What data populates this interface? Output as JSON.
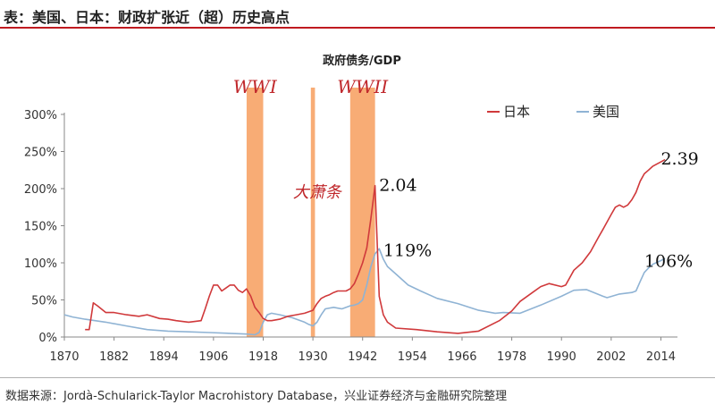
{
  "header": {
    "title": "表：美国、日本：财政扩张近（超）历史高点"
  },
  "footer": {
    "source": "数据来源：Jordà-Schularick-Taylor Macrohistory Database，兴业证券经济与金融研究院整理"
  },
  "colors": {
    "japan": "#d0393b",
    "usa": "#8fb3d4",
    "bands": "#f7a366",
    "accent_rule": "#c01a20",
    "annotation_red": "#c0282c"
  },
  "chart_data": {
    "type": "line",
    "title": "政府债务/GDP",
    "xlabel": "",
    "ylabel": "",
    "xlim": [
      1870,
      2018
    ],
    "ylim": [
      0,
      300
    ],
    "x_ticks": [
      "1870",
      "1882",
      "1894",
      "1906",
      "1918",
      "1930",
      "1942",
      "1954",
      "1966",
      "1978",
      "1990",
      "2002",
      "2014"
    ],
    "y_ticks": [
      "0%",
      "50%",
      "100%",
      "150%",
      "200%",
      "250%",
      "300%"
    ],
    "legend": {
      "placement": "top-right",
      "entries": [
        "日本",
        "美国"
      ]
    },
    "bands": [
      {
        "label": "WWI",
        "start": 1914,
        "end": 1918
      },
      {
        "label": "",
        "start": 1929.5,
        "end": 1930.5
      },
      {
        "label": "WWII",
        "start": 1939,
        "end": 1945
      }
    ],
    "annotations": [
      {
        "text": "大萧条",
        "x": 1931,
        "y": 195,
        "color": "red",
        "italic": true
      },
      {
        "text": "2.04",
        "x": 1946,
        "y": 204,
        "color": "black"
      },
      {
        "text": "119%",
        "x": 1947,
        "y": 116,
        "color": "black"
      },
      {
        "text": "2.39",
        "x": 2014,
        "y": 240,
        "color": "black"
      },
      {
        "text": "106%",
        "x": 2010,
        "y": 102,
        "color": "black"
      }
    ],
    "series": [
      {
        "name": "日本",
        "x": [
          1875,
          1876,
          1877,
          1878,
          1880,
          1882,
          1885,
          1888,
          1890,
          1893,
          1895,
          1897,
          1900,
          1903,
          1904,
          1905,
          1906,
          1907,
          1908,
          1909,
          1910,
          1911,
          1912,
          1913,
          1914,
          1915,
          1916,
          1917,
          1918,
          1919,
          1920,
          1922,
          1924,
          1926,
          1928,
          1930,
          1931,
          1932,
          1933,
          1934,
          1935,
          1936,
          1937,
          1938,
          1939,
          1940,
          1941,
          1942,
          1943,
          1944,
          1945,
          1946,
          1947,
          1948,
          1950,
          1955,
          1960,
          1965,
          1970,
          1975,
          1978,
          1980,
          1983,
          1985,
          1987,
          1990,
          1991,
          1992,
          1993,
          1995,
          1997,
          1999,
          2000,
          2002,
          2003,
          2004,
          2005,
          2006,
          2007,
          2008,
          2009,
          2010,
          2011,
          2012,
          2013,
          2014,
          2015
        ],
        "values": [
          10,
          10,
          46,
          42,
          33,
          33,
          30,
          28,
          30,
          25,
          24,
          22,
          20,
          22,
          38,
          55,
          70,
          70,
          62,
          66,
          70,
          70,
          63,
          60,
          65,
          55,
          40,
          33,
          25,
          22,
          22,
          24,
          28,
          30,
          32,
          36,
          45,
          52,
          55,
          57,
          60,
          62,
          62,
          62,
          65,
          72,
          85,
          100,
          120,
          160,
          204,
          55,
          30,
          20,
          12,
          10,
          7,
          5,
          8,
          22,
          35,
          48,
          60,
          68,
          72,
          68,
          70,
          80,
          90,
          100,
          115,
          135,
          145,
          165,
          175,
          178,
          175,
          178,
          185,
          195,
          210,
          220,
          225,
          230,
          233,
          236,
          239
        ]
      },
      {
        "name": "美国",
        "x": [
          1870,
          1872,
          1875,
          1880,
          1885,
          1890,
          1895,
          1900,
          1905,
          1910,
          1914,
          1916,
          1917,
          1918,
          1919,
          1920,
          1922,
          1925,
          1928,
          1929,
          1930,
          1931,
          1932,
          1933,
          1935,
          1937,
          1939,
          1940,
          1941,
          1942,
          1943,
          1944,
          1945,
          1946,
          1947,
          1948,
          1950,
          1953,
          1956,
          1960,
          1965,
          1970,
          1974,
          1976,
          1980,
          1985,
          1990,
          1993,
          1996,
          2000,
          2001,
          2004,
          2007,
          2008,
          2009,
          2010,
          2011,
          2012,
          2014,
          2015
        ],
        "values": [
          30,
          27,
          24,
          20,
          15,
          10,
          8,
          7,
          6,
          5,
          4,
          3,
          6,
          20,
          30,
          32,
          30,
          26,
          20,
          17,
          15,
          20,
          30,
          38,
          40,
          38,
          42,
          43,
          45,
          50,
          70,
          95,
          112,
          119,
          105,
          95,
          85,
          70,
          62,
          52,
          45,
          36,
          32,
          33,
          32,
          43,
          55,
          63,
          64,
          55,
          53,
          58,
          60,
          62,
          75,
          87,
          93,
          98,
          103,
          106
        ]
      }
    ]
  }
}
